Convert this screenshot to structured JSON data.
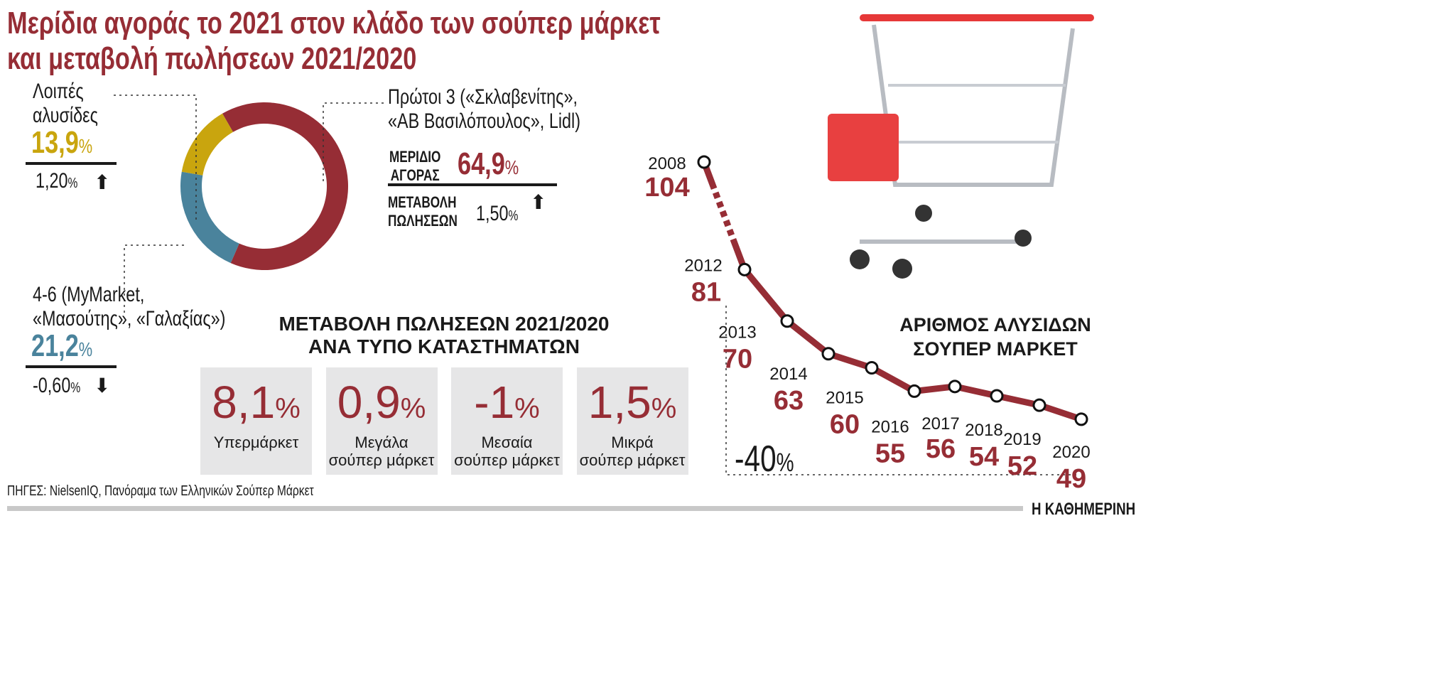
{
  "title": [
    "Μερίδια αγοράς το 2021 στον κλάδο των σούπερ μάρκετ",
    "και μεταβολή πωλήσεων 2021/2020"
  ],
  "colors": {
    "brand": "#962d35",
    "top3": "#962d35",
    "others": "#c9a50e",
    "mid": "#4a839c",
    "box": "#e6e6e7"
  },
  "donut": {
    "others": {
      "label": [
        "Λοιπές",
        "αλυσίδες"
      ],
      "share": "13,9",
      "change": "1,20",
      "direction": "up-arrow-icon"
    },
    "mid": {
      "label": [
        "4-6 (MyMarket,",
        "«Μασούτης», «Γαλαξίας»)"
      ],
      "share": "21,2",
      "change": "-0,60",
      "direction": "down-arrow-icon"
    },
    "top3": {
      "label": [
        "Πρώτοι 3 («Σκλαβενίτης»,",
        "«ΑΒ Βασιλόπουλος», Lidl)"
      ],
      "share_label": [
        "ΜΕΡΙΔΙΟ",
        "ΑΓΟΡΑΣ"
      ],
      "share": "64,9",
      "change_label": [
        "ΜΕΤΑΒΟΛΗ",
        "ΠΩΛΗΣΕΩΝ"
      ],
      "change": "1,50",
      "direction": "up-arrow-icon"
    },
    "pct": "%"
  },
  "store_types": {
    "title": [
      "ΜΕΤΑΒΟΛΗ ΠΩΛΗΣΕΩΝ 2021/2020",
      "ΑΝΑ ΤΥΠΟ ΚΑΤΑΣΤΗΜΑΤΩΝ"
    ],
    "items": [
      {
        "value": "8,1",
        "label": [
          "Υπερμάρκετ",
          ""
        ]
      },
      {
        "value": "0,9",
        "label": [
          "Μεγάλα",
          "σούπερ μάρκετ"
        ]
      },
      {
        "value": "-1",
        "label": [
          "Μεσαία",
          "σούπερ μάρκετ"
        ]
      },
      {
        "value": "1,5",
        "label": [
          "Μικρά",
          "σούπερ μάρκετ"
        ]
      }
    ]
  },
  "chart_data": [
    {
      "type": "pie",
      "categories": [
        "Πρώτοι 3",
        "4-6",
        "Λοιπές αλυσίδες"
      ],
      "values": [
        64.9,
        21.2,
        13.9
      ],
      "colors": [
        "#962d35",
        "#4a839c",
        "#c9a50e"
      ]
    },
    {
      "type": "line",
      "title": [
        "ΑΡΙΘΜΟΣ ΑΛΥΣΙΔΩΝ",
        "ΣΟΥΠΕΡ ΜΑΡΚΕΤ"
      ],
      "x": [
        "2008",
        "2012",
        "2013",
        "2014",
        "2015",
        "2016",
        "2017",
        "2018",
        "2019",
        "2020"
      ],
      "values": [
        104,
        81,
        70,
        63,
        60,
        55,
        56,
        54,
        52,
        49
      ],
      "dashed_segment": [
        "2008",
        "2012"
      ],
      "annotation": "-40%"
    }
  ],
  "annotation": {
    "value": "-40",
    "pct": "%"
  },
  "source": "ΠΗΓΕΣ: NielsenIQ, Πανόραμα των Ελληνικών Σούπερ Μάρκετ",
  "publisher": "Η ΚΑΘΗΜΕΡΙΝΗ"
}
